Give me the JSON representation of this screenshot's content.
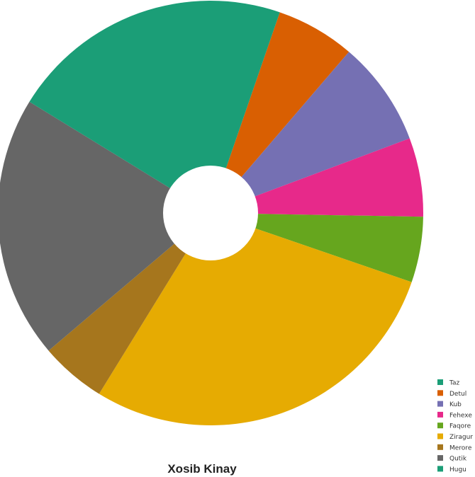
{
  "chart_data": {
    "type": "pie",
    "title": "Xosib Kinay",
    "donut": true,
    "legend_position": "bottom-right",
    "start_angle_deg": 19,
    "direction": "clockwise",
    "slices": [
      {
        "label": "Taz",
        "value": 0.0,
        "color": "#1b9e77"
      },
      {
        "label": "Detul",
        "value": 6.0,
        "color": "#d95f02"
      },
      {
        "label": "Kub",
        "value": 8.0,
        "color": "#7570b3"
      },
      {
        "label": "Fehexe",
        "value": 6.0,
        "color": "#e7298a"
      },
      {
        "label": "Faqore",
        "value": 5.0,
        "color": "#66a61e"
      },
      {
        "label": "Ziragur",
        "value": 28.5,
        "color": "#e6ab02"
      },
      {
        "label": "Merore",
        "value": 5.0,
        "color": "#a6761d"
      },
      {
        "label": "Qutik",
        "value": 20.0,
        "color": "#666666"
      },
      {
        "label": "Hugu",
        "value": 21.5,
        "color": "#1b9e77"
      }
    ]
  }
}
